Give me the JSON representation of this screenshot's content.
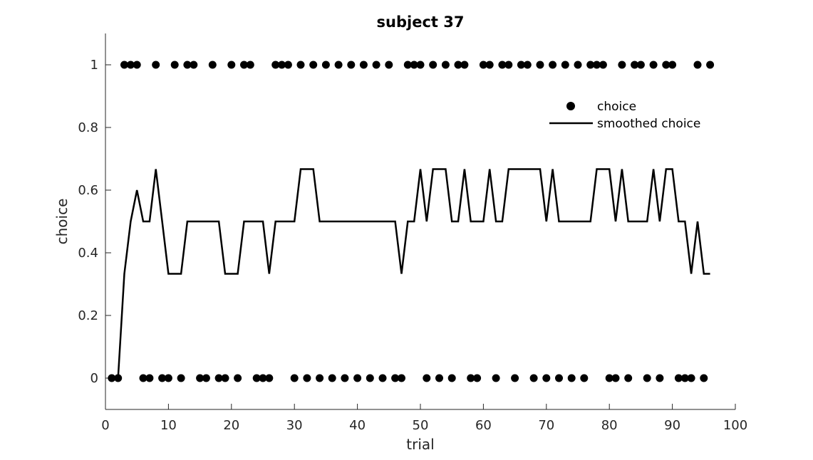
{
  "chart_data": {
    "type": "scatter",
    "title": "subject 37",
    "xlabel": "trial",
    "ylabel": "choice",
    "xlim": [
      0,
      100
    ],
    "ylim": [
      -0.1,
      1.1
    ],
    "xticks": [
      0,
      10,
      20,
      30,
      40,
      50,
      60,
      70,
      80,
      90,
      100
    ],
    "yticks": [
      0,
      0.2,
      0.4,
      0.6,
      0.8,
      1
    ],
    "ytick_labels": [
      "0",
      "0.2",
      "0.4",
      "0.6",
      "0.8",
      "1"
    ],
    "grid": false,
    "legend_position": "top-right",
    "series": [
      {
        "name": "choice",
        "kind": "scatter",
        "color": "#000000",
        "x": [
          1,
          2,
          3,
          4,
          5,
          6,
          7,
          8,
          9,
          10,
          11,
          12,
          13,
          14,
          15,
          16,
          17,
          18,
          19,
          20,
          21,
          22,
          23,
          24,
          25,
          26,
          27,
          28,
          29,
          30,
          31,
          32,
          33,
          34,
          35,
          36,
          37,
          38,
          39,
          40,
          41,
          42,
          43,
          44,
          45,
          46,
          47,
          48,
          49,
          50,
          51,
          52,
          53,
          54,
          55,
          56,
          57,
          58,
          59,
          60,
          61,
          62,
          63,
          64,
          65,
          66,
          67,
          68,
          69,
          70,
          71,
          72,
          73,
          74,
          75,
          76,
          77,
          78,
          79,
          80,
          81,
          82,
          83,
          84,
          85,
          86,
          87,
          88,
          89,
          90,
          91,
          92,
          93,
          94,
          95,
          96
        ],
        "y": [
          0,
          0,
          1,
          1,
          1,
          0,
          0,
          1,
          0,
          0,
          1,
          0,
          1,
          1,
          0,
          0,
          1,
          0,
          0,
          1,
          0,
          1,
          1,
          0,
          0,
          0,
          1,
          1,
          1,
          0,
          1,
          0,
          1,
          0,
          1,
          0,
          1,
          0,
          1,
          0,
          1,
          0,
          1,
          0,
          1,
          0,
          0,
          1,
          1,
          1,
          0,
          1,
          0,
          1,
          0,
          1,
          1,
          0,
          0,
          1,
          1,
          0,
          1,
          1,
          0,
          1,
          1,
          0,
          1,
          0,
          1,
          0,
          1,
          0,
          1,
          0,
          1,
          1,
          1,
          0,
          0,
          1,
          0,
          1,
          1,
          0,
          1,
          0,
          1,
          1,
          0,
          0,
          0,
          1,
          0,
          1
        ]
      },
      {
        "name": "smoothed choice",
        "kind": "line",
        "color": "#000000",
        "x": [
          1,
          2,
          3,
          4,
          5,
          6,
          7,
          8,
          9,
          10,
          11,
          12,
          13,
          14,
          15,
          16,
          17,
          18,
          19,
          20,
          21,
          22,
          23,
          24,
          25,
          26,
          27,
          28,
          29,
          30,
          31,
          32,
          33,
          34,
          35,
          36,
          37,
          38,
          39,
          40,
          41,
          42,
          43,
          44,
          45,
          46,
          47,
          48,
          49,
          50,
          51,
          52,
          53,
          54,
          55,
          56,
          57,
          58,
          59,
          60,
          61,
          62,
          63,
          64,
          65,
          66,
          67,
          68,
          69,
          70,
          71,
          72,
          73,
          74,
          75,
          76,
          77,
          78,
          79,
          80,
          81,
          82,
          83,
          84,
          85,
          86,
          87,
          88,
          89,
          90,
          91,
          92,
          93,
          94,
          95,
          96
        ],
        "y": [
          0,
          0,
          0.333,
          0.5,
          0.6,
          0.5,
          0.5,
          0.667,
          0.5,
          0.333,
          0.333,
          0.333,
          0.5,
          0.5,
          0.5,
          0.5,
          0.5,
          0.5,
          0.333,
          0.333,
          0.333,
          0.5,
          0.5,
          0.5,
          0.5,
          0.333,
          0.5,
          0.5,
          0.5,
          0.5,
          0.667,
          0.667,
          0.667,
          0.5,
          0.5,
          0.5,
          0.5,
          0.5,
          0.5,
          0.5,
          0.5,
          0.5,
          0.5,
          0.5,
          0.5,
          0.5,
          0.333,
          0.5,
          0.5,
          0.667,
          0.5,
          0.667,
          0.667,
          0.667,
          0.5,
          0.5,
          0.667,
          0.5,
          0.5,
          0.5,
          0.667,
          0.5,
          0.5,
          0.667,
          0.667,
          0.667,
          0.667,
          0.667,
          0.667,
          0.5,
          0.667,
          0.5,
          0.5,
          0.5,
          0.5,
          0.5,
          0.5,
          0.667,
          0.667,
          0.667,
          0.5,
          0.667,
          0.5,
          0.5,
          0.5,
          0.5,
          0.667,
          0.5,
          0.667,
          0.667,
          0.5,
          0.5,
          0.333,
          0.5,
          0.333,
          0.333
        ]
      }
    ]
  }
}
